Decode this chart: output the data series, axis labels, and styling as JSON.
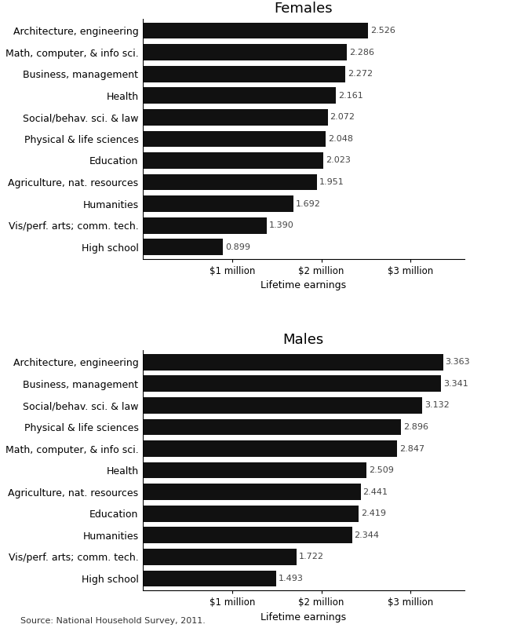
{
  "females": {
    "title": "Females",
    "categories": [
      "Architecture, engineering",
      "Math, computer, & info sci.",
      "Business, management",
      "Health",
      "Social/behav. sci. & law",
      "Physical & life sciences",
      "Education",
      "Agriculture, nat. resources",
      "Humanities",
      "Vis/perf. arts; comm. tech.",
      "High school"
    ],
    "values": [
      2.526,
      2.286,
      2.272,
      2.161,
      2.072,
      2.048,
      2.023,
      1.951,
      1.692,
      1.39,
      0.899
    ]
  },
  "males": {
    "title": "Males",
    "categories": [
      "Architecture, engineering",
      "Business, management",
      "Social/behav. sci. & law",
      "Physical & life sciences",
      "Math, computer, & info sci.",
      "Health",
      "Agriculture, nat. resources",
      "Education",
      "Humanities",
      "Vis/perf. arts; comm. tech.",
      "High school"
    ],
    "values": [
      3.363,
      3.341,
      3.132,
      2.896,
      2.847,
      2.509,
      2.441,
      2.419,
      2.344,
      1.722,
      1.493
    ]
  },
  "bar_color": "#111111",
  "xlabel": "Lifetime earnings",
  "xlim": [
    0,
    3.6
  ],
  "xtick_positions": [
    1,
    2,
    3
  ],
  "xtick_labels": [
    "$1 million",
    "$2 million",
    "$3 million"
  ],
  "source_text": "Source: National Household Survey, 2011.",
  "title_fontsize": 13,
  "label_fontsize": 9,
  "value_fontsize": 8,
  "xlabel_fontsize": 9,
  "xtick_fontsize": 8.5,
  "source_fontsize": 8
}
